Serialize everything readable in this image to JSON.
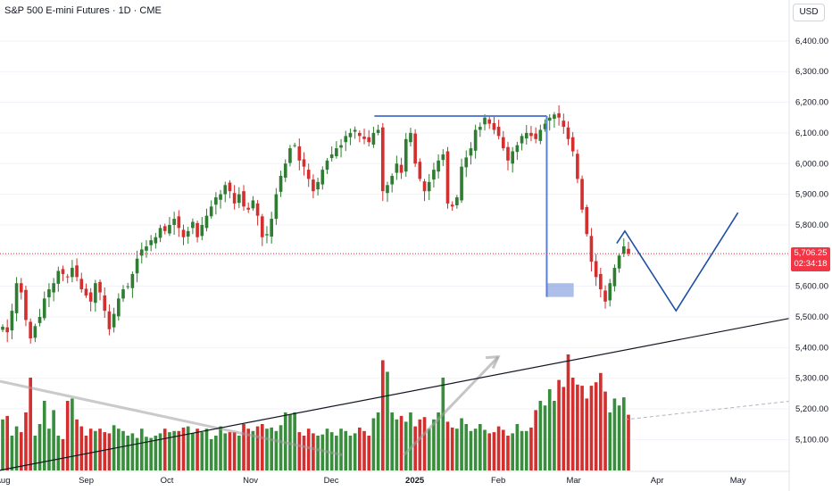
{
  "header": {
    "title": "S&P 500 E-mini Futures · 1D · CME"
  },
  "currency_button": {
    "label": "USD"
  },
  "last_price": {
    "value": "5,706.25",
    "countdown": "02:34:18",
    "color": "#f23645"
  },
  "colors": {
    "up": "#2e7d32",
    "down": "#d32f2f",
    "vol_up": "#388e3c",
    "vol_down": "#d32f2f",
    "pattern": "#5b7fd4",
    "projection": "#1e4fa3",
    "trendline": "#131722"
  },
  "chart_data": {
    "type": "candlestick",
    "title": "S&P 500 E-mini Futures · 1D · CME",
    "ylim": [
      5000,
      6500
    ],
    "y_ticks": [
      "6,400.00",
      "6,300.00",
      "6,200.00",
      "6,100.00",
      "6,000.00",
      "5,900.00",
      "5,800.00",
      "5,700.00",
      "5,600.00",
      "5,500.00",
      "5,400.00",
      "5,300.00",
      "5,200.00",
      "5,100.00"
    ],
    "y_tick_values": [
      6400,
      6300,
      6200,
      6100,
      6000,
      5900,
      5800,
      5700,
      5600,
      5500,
      5400,
      5300,
      5200,
      5100
    ],
    "x_ticks": [
      "Aug",
      "Sep",
      "Oct",
      "Nov",
      "Dec",
      "2025",
      "Feb",
      "Mar",
      "Apr",
      "May"
    ],
    "x_tick_dates": [
      "2024-08-01",
      "2024-09-01",
      "2024-10-01",
      "2024-11-01",
      "2024-12-01",
      "2025-01-01",
      "2025-02-01",
      "2025-03-01",
      "2025-04-01",
      "2025-05-01"
    ],
    "x_range": [
      "2024-07-31",
      "2025-05-20"
    ],
    "closes": [
      5468,
      5450,
      5520,
      5610,
      5580,
      5490,
      5430,
      5470,
      5500,
      5560,
      5590,
      5610,
      5650,
      5640,
      5630,
      5660,
      5630,
      5590,
      5570,
      5550,
      5610,
      5580,
      5520,
      5460,
      5510,
      5560,
      5590,
      5600,
      5640,
      5690,
      5720,
      5730,
      5750,
      5760,
      5790,
      5780,
      5800,
      5820,
      5790,
      5760,
      5780,
      5810,
      5760,
      5800,
      5830,
      5860,
      5890,
      5900,
      5930,
      5910,
      5870,
      5900,
      5860,
      5850,
      5880,
      5830,
      5760,
      5770,
      5820,
      5900,
      5960,
      6000,
      6050,
      6060,
      6010,
      5990,
      5950,
      5910,
      5940,
      5980,
      6010,
      6030,
      6050,
      6060,
      6090,
      6100,
      6110,
      6090,
      6080,
      6070,
      6100,
      6110,
      5910,
      5930,
      5960,
      6000,
      5970,
      6080,
      6100,
      6000,
      5950,
      5910,
      5940,
      5980,
      6010,
      6030,
      5870,
      5860,
      5890,
      5990,
      6020,
      6050,
      6110,
      6120,
      6150,
      6130,
      6110,
      6090,
      6050,
      6010,
      6040,
      6060,
      6090,
      6100,
      6090,
      6080,
      6110,
      6130,
      6150,
      6160,
      6150,
      6120,
      6080,
      6040,
      5950,
      5850,
      5770,
      5680,
      5630,
      5590,
      5550,
      5610,
      5660,
      5700,
      5730,
      5706
    ],
    "volume_relative": [
      0.44,
      0.47,
      0.3,
      0.38,
      0.33,
      0.5,
      0.8,
      0.3,
      0.4,
      0.6,
      0.36,
      0.52,
      0.3,
      0.27,
      0.6,
      0.62,
      0.44,
      0.38,
      0.3,
      0.36,
      0.34,
      0.36,
      0.33,
      0.32,
      0.39,
      0.36,
      0.34,
      0.3,
      0.32,
      0.28,
      0.36,
      0.29,
      0.28,
      0.3,
      0.32,
      0.36,
      0.33,
      0.34,
      0.34,
      0.37,
      0.38,
      0.32,
      0.36,
      0.33,
      0.36,
      0.27,
      0.3,
      0.38,
      0.32,
      0.33,
      0.33,
      0.3,
      0.4,
      0.36,
      0.34,
      0.38,
      0.4,
      0.36,
      0.37,
      0.34,
      0.39,
      0.5,
      0.48,
      0.5,
      0.33,
      0.3,
      0.36,
      0.32,
      0.3,
      0.31,
      0.36,
      0.33,
      0.3,
      0.36,
      0.34,
      0.3,
      0.32,
      0.37,
      0.34,
      0.3,
      0.45,
      0.5,
      0.95,
      0.85,
      0.5,
      0.44,
      0.47,
      0.42,
      0.5,
      0.38,
      0.44,
      0.46,
      0.36,
      0.44,
      0.5,
      0.8,
      0.42,
      0.37,
      0.36,
      0.45,
      0.4,
      0.34,
      0.36,
      0.4,
      0.35,
      0.32,
      0.33,
      0.38,
      0.35,
      0.3,
      0.32,
      0.4,
      0.34,
      0.34,
      0.37,
      0.52,
      0.6,
      0.56,
      0.7,
      0.6,
      0.78,
      0.72,
      1.0,
      0.8,
      0.74,
      0.73,
      0.62,
      0.73,
      0.76,
      0.84,
      0.68,
      0.5,
      0.62,
      0.56,
      0.63,
      0.48
    ]
  },
  "drawings": {
    "top_line": [
      [
        "2024-12-17",
        6155
      ],
      [
        "2025-02-19",
        6155
      ]
    ],
    "drop_line": [
      [
        "2025-02-19",
        6155
      ],
      [
        "2025-02-19",
        5565
      ]
    ],
    "target_box": {
      "from": "2025-02-19",
      "to": "2025-03-01",
      "low": 5565,
      "high": 5610
    },
    "projection": [
      [
        "2025-03-17",
        5740
      ],
      [
        "2025-03-20",
        5780
      ],
      [
        "2025-04-08",
        5520
      ],
      [
        "2025-05-01",
        5840
      ]
    ],
    "trendline": [
      [
        "2024-07-31",
        5000
      ],
      [
        "2025-05-20",
        5495
      ]
    ],
    "dashed_extension": [
      [
        "2025-03-20",
        5165
      ],
      [
        "2025-05-20",
        5225
      ]
    ],
    "grey_arrow_up": [
      [
        "2024-12-28",
        5050
      ],
      [
        "2025-02-01",
        5370
      ]
    ],
    "grey_curve_down": [
      [
        "2024-07-31",
        5290
      ],
      [
        "2024-12-05",
        5050
      ]
    ]
  }
}
